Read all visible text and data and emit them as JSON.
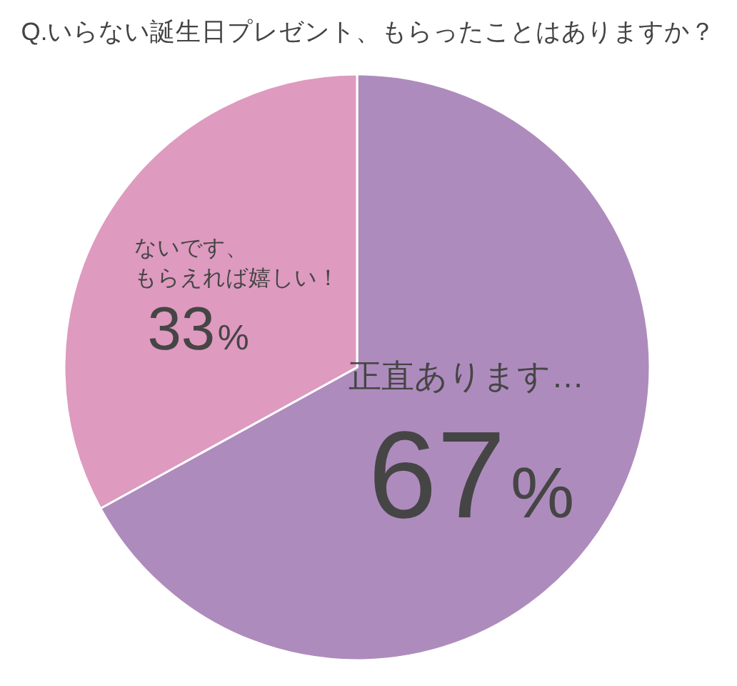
{
  "chart_data": {
    "type": "pie",
    "title": "Q.いらない誕生日プレゼント、もらったことはありますか？",
    "categories": [
      "正直あります…",
      "ないです、もらえれば嬉しい！"
    ],
    "values": [
      67,
      33
    ],
    "colors": [
      "#ae8bbd",
      "#de9abf"
    ],
    "value_labels": [
      "67%",
      "33%"
    ]
  }
}
